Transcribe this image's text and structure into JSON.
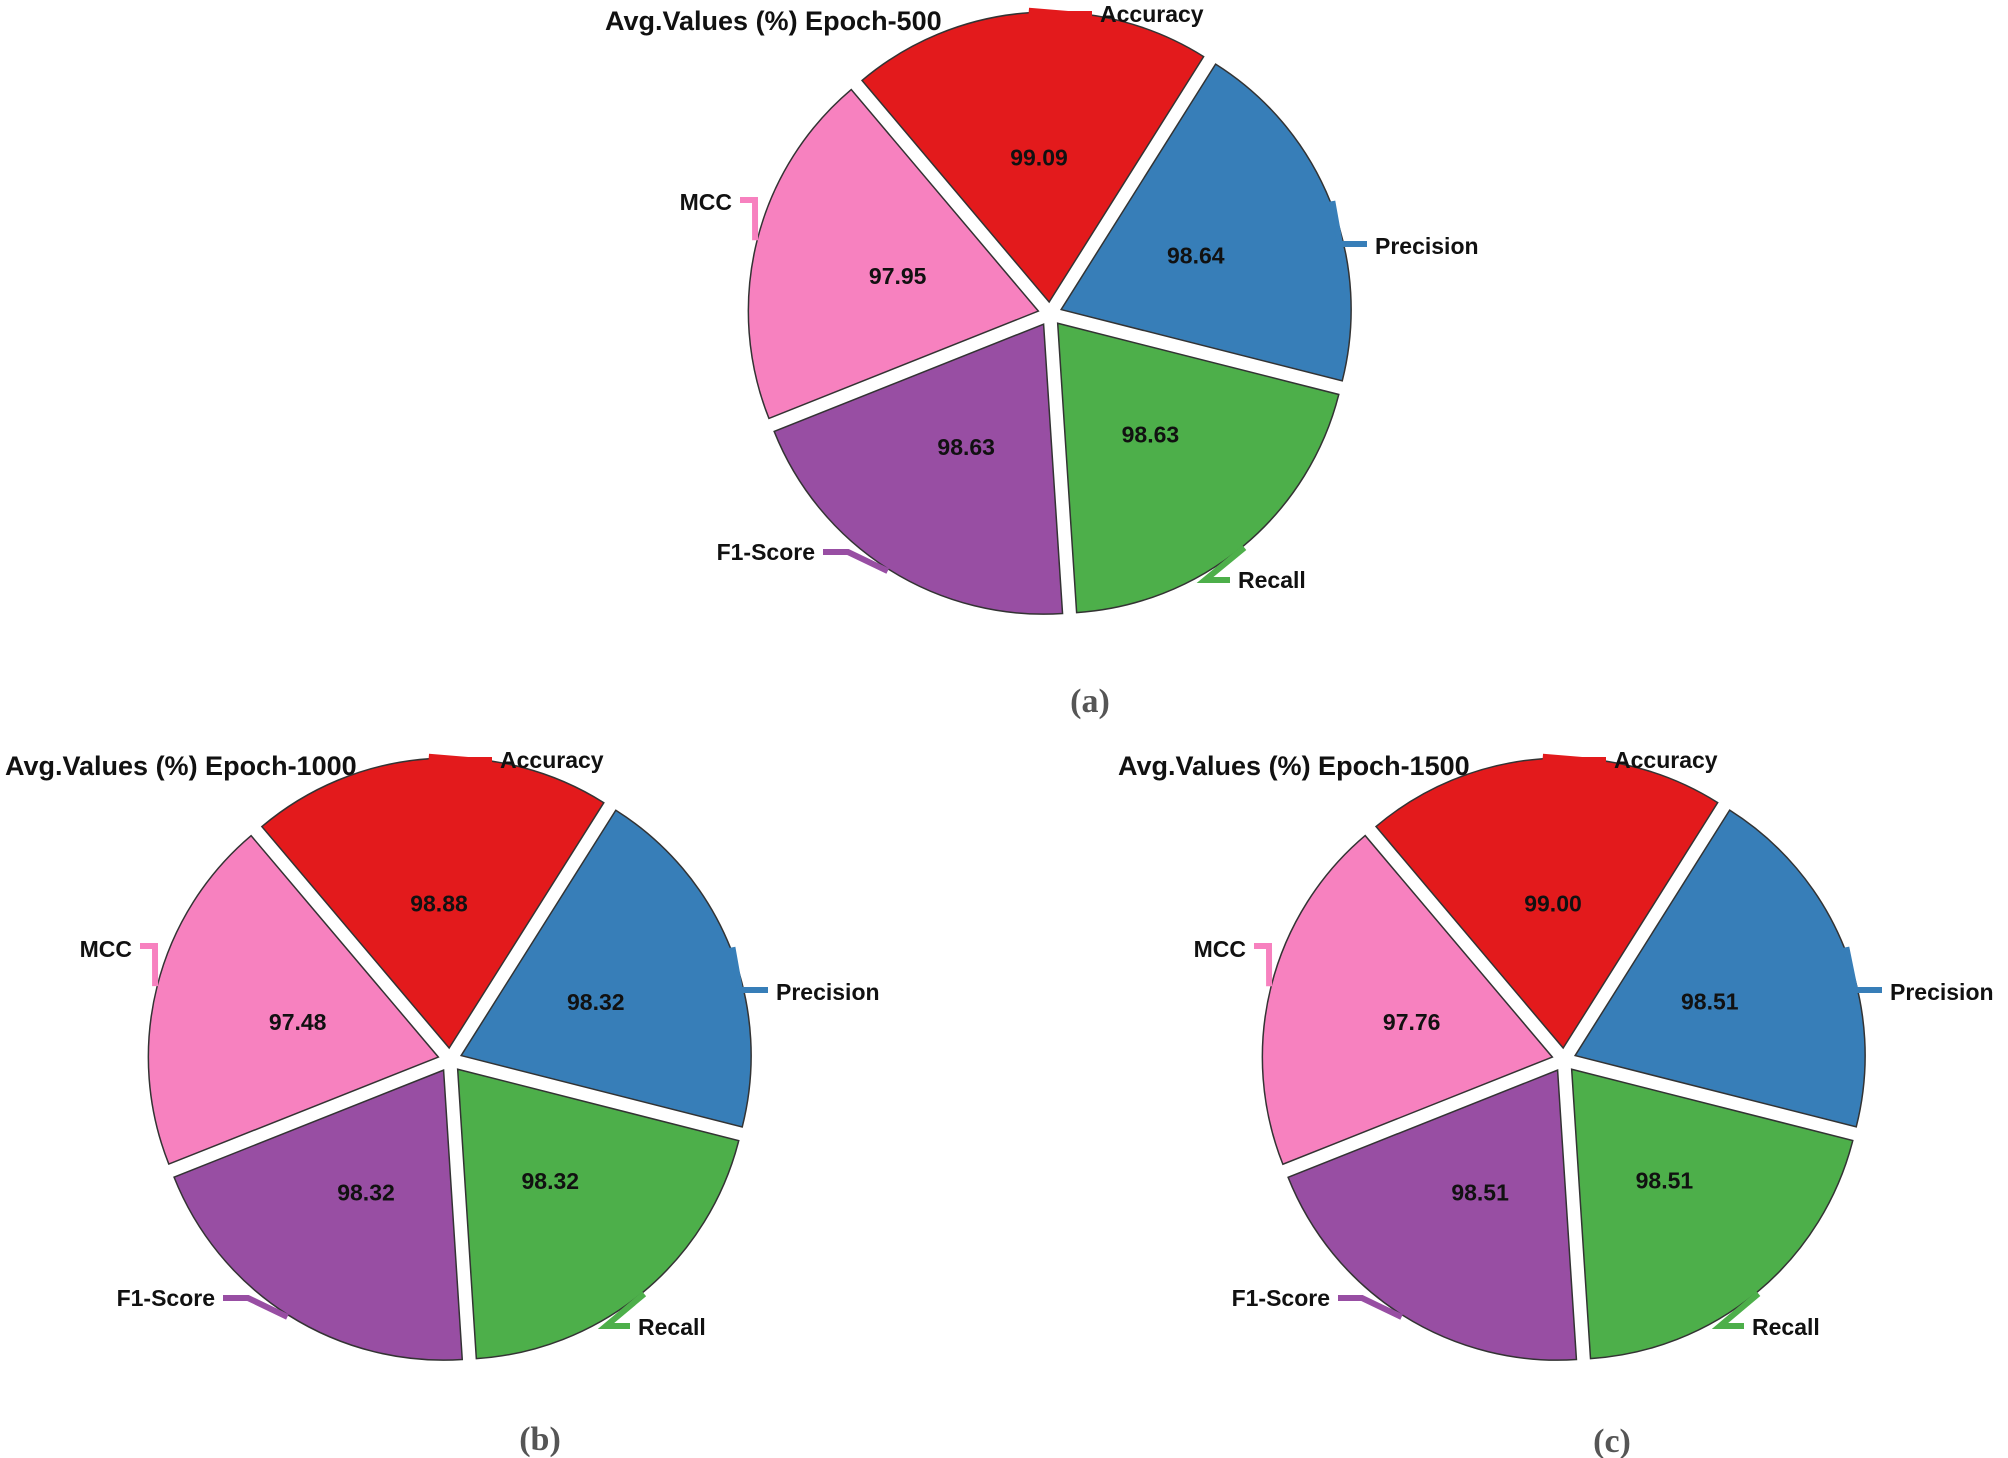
{
  "figure": {
    "captions": [
      "(a)",
      "(b)",
      "(c)"
    ]
  },
  "chart_data": [
    {
      "type": "pie",
      "title": "Avg.Values (%) Epoch-500",
      "categories": [
        "Accuracy",
        "Precision",
        "Recall",
        "F1-Score",
        "MCC"
      ],
      "values": [
        99.09,
        98.64,
        98.63,
        98.63,
        97.95
      ],
      "value_labels": [
        "99.09",
        "98.64",
        "98.63",
        "98.63",
        "97.95"
      ],
      "colors": [
        "#e31a1c",
        "#377eb8",
        "#4daf4a",
        "#984ea3",
        "#f781bf"
      ],
      "exploded": true,
      "legend": "none"
    },
    {
      "type": "pie",
      "title": "Avg.Values (%) Epoch-1000",
      "categories": [
        "Accuracy",
        "Precision",
        "Recall",
        "F1-Score",
        "MCC"
      ],
      "values": [
        98.88,
        98.32,
        98.32,
        98.32,
        97.48
      ],
      "value_labels": [
        "98.88",
        "98.32",
        "98.32",
        "98.32",
        "97.48"
      ],
      "colors": [
        "#e31a1c",
        "#377eb8",
        "#4daf4a",
        "#984ea3",
        "#f781bf"
      ],
      "exploded": true,
      "legend": "none"
    },
    {
      "type": "pie",
      "title": "Avg.Values (%) Epoch-1500",
      "categories": [
        "Accuracy",
        "Precision",
        "Recall",
        "F1-Score",
        "MCC"
      ],
      "values": [
        99.0,
        98.51,
        98.51,
        98.51,
        97.76
      ],
      "value_labels": [
        "99.00",
        "98.51",
        "98.51",
        "98.51",
        "97.76"
      ],
      "colors": [
        "#e31a1c",
        "#377eb8",
        "#4daf4a",
        "#984ea3",
        "#f781bf"
      ],
      "exploded": true,
      "legend": "none"
    }
  ]
}
